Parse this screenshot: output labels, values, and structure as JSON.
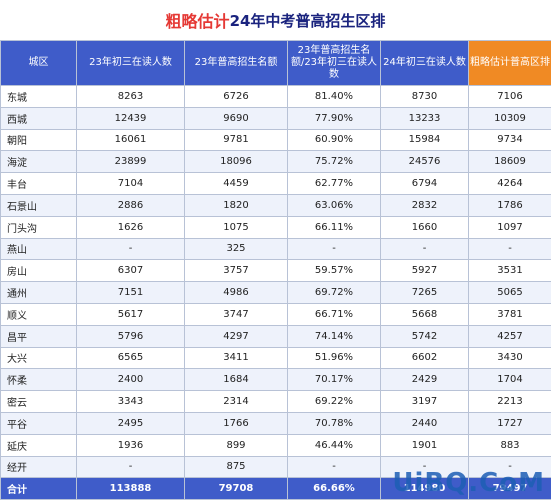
{
  "title": {
    "highlight": "粗略估计",
    "rest": "24年中考普高招生区排"
  },
  "headers": [
    "城区",
    "23年初三在读人数",
    "23年普高招生名额",
    "23年普高招生名额/23年初三在读人数",
    "24年初三在读人数",
    "粗略估计普高区排"
  ],
  "rows": [
    [
      "东城",
      "8263",
      "6726",
      "81.40%",
      "8730",
      "7106"
    ],
    [
      "西城",
      "12439",
      "9690",
      "77.90%",
      "13233",
      "10309"
    ],
    [
      "朝阳",
      "16061",
      "9781",
      "60.90%",
      "15984",
      "9734"
    ],
    [
      "海淀",
      "23899",
      "18096",
      "75.72%",
      "24576",
      "18609"
    ],
    [
      "丰台",
      "7104",
      "4459",
      "62.77%",
      "6794",
      "4264"
    ],
    [
      "石景山",
      "2886",
      "1820",
      "63.06%",
      "2832",
      "1786"
    ],
    [
      "门头沟",
      "1626",
      "1075",
      "66.11%",
      "1660",
      "1097"
    ],
    [
      "燕山",
      "-",
      "325",
      "-",
      "-",
      "-"
    ],
    [
      "房山",
      "6307",
      "3757",
      "59.57%",
      "5927",
      "3531"
    ],
    [
      "通州",
      "7151",
      "4986",
      "69.72%",
      "7265",
      "5065"
    ],
    [
      "顺义",
      "5617",
      "3747",
      "66.71%",
      "5668",
      "3781"
    ],
    [
      "昌平",
      "5796",
      "4297",
      "74.14%",
      "5742",
      "4257"
    ],
    [
      "大兴",
      "6565",
      "3411",
      "51.96%",
      "6602",
      "3430"
    ],
    [
      "怀柔",
      "2400",
      "1684",
      "70.17%",
      "2429",
      "1704"
    ],
    [
      "密云",
      "3343",
      "2314",
      "69.22%",
      "3197",
      "2213"
    ],
    [
      "平谷",
      "2495",
      "1766",
      "70.78%",
      "2440",
      "1727"
    ],
    [
      "延庆",
      "1936",
      "899",
      "46.44%",
      "1901",
      "883"
    ],
    [
      "经开",
      "-",
      "875",
      "-",
      "-",
      "-"
    ]
  ],
  "total": [
    "合计",
    "113888",
    "79708",
    "66.66%",
    "114980",
    "79497"
  ],
  "watermark": "UiBQ.CoM"
}
